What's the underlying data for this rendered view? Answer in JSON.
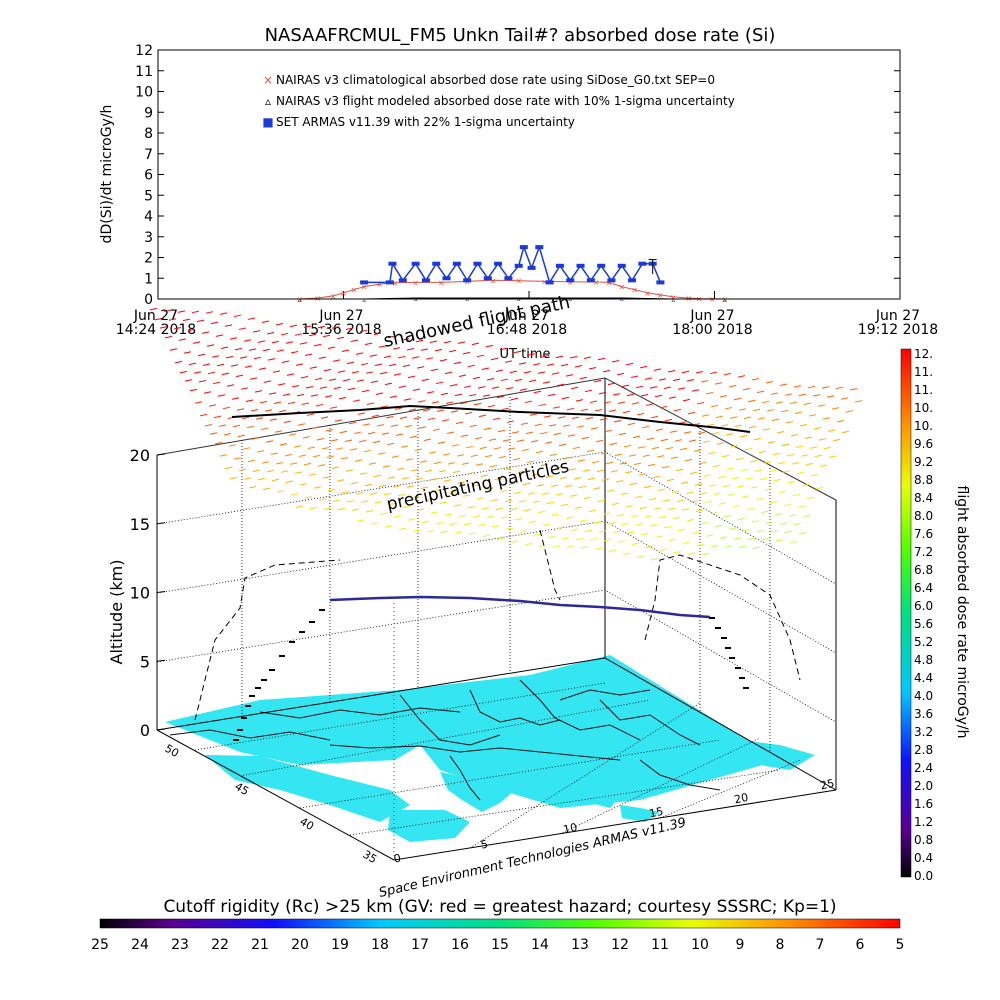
{
  "figure": {
    "title": "NASAAFRCMUL_FM5 Unkn Tail#? absorbed dose rate (Si)",
    "credit": "Space Environment Technologies ARMAS v11.39"
  },
  "chart_data": [
    {
      "type": "line",
      "title": "NASAAFRCMUL_FM5 Unkn Tail#? absorbed dose rate (Si)",
      "xlabel": "UT time",
      "ylabel": "dD(Si)/dt microGy/h",
      "ylim": [
        0,
        12
      ],
      "yticks": [
        "0",
        "1",
        "2",
        "3",
        "4",
        "5",
        "6",
        "7",
        "8",
        "9",
        "10",
        "11",
        "12"
      ],
      "xticks": [
        {
          "line1": "Jun 27",
          "line2": "14:24 2018"
        },
        {
          "line1": "Jun 27",
          "line2": "15:36 2018"
        },
        {
          "line1": "Jun 27",
          "line2": "16:48 2018"
        },
        {
          "line1": "Jun 27",
          "line2": "18:00 2018"
        },
        {
          "line1": "Jun 27",
          "line2": "19:12 2018"
        }
      ],
      "x_unit": "minutes after 14:24 UT",
      "legend_position": "top-left",
      "series": [
        {
          "name": "NAIRAS v3 climatological absorbed dose rate using SiDose_G0.txt SEP=0",
          "color": "#e05040",
          "marker": "x",
          "x": [
            55,
            62,
            68,
            72,
            76,
            80,
            86,
            92,
            100,
            110,
            120,
            130,
            140,
            150,
            160,
            170,
            175,
            180,
            185,
            190,
            195,
            200,
            206,
            210,
            215,
            220
          ],
          "y": [
            0.0,
            0.05,
            0.15,
            0.3,
            0.45,
            0.6,
            0.72,
            0.78,
            0.8,
            0.8,
            0.85,
            0.9,
            0.88,
            0.85,
            0.83,
            0.82,
            0.8,
            0.6,
            0.45,
            0.3,
            0.2,
            0.1,
            0.05,
            0.02,
            0.01,
            0.0
          ]
        },
        {
          "name": "NAIRAS v3 flight modeled absorbed dose rate with 10% 1-sigma uncertainty",
          "color": "#000000",
          "marker": "triangle",
          "x": [
            55,
            80,
            100,
            120,
            140,
            160,
            180,
            200,
            220
          ],
          "y": [
            0.0,
            0.0,
            0.05,
            0.05,
            0.05,
            0.05,
            0.05,
            0.0,
            0.0
          ]
        },
        {
          "name": "SET ARMAS v11.39 with 22% 1-sigma uncertainty",
          "color": "#1a3adb",
          "marker": "square",
          "x": [
            80,
            90,
            91,
            95,
            100,
            104,
            108,
            112,
            116,
            120,
            124,
            128,
            132,
            136,
            140,
            142,
            145,
            148,
            152,
            156,
            160,
            164,
            168,
            172,
            176,
            180,
            184,
            188,
            192,
            195
          ],
          "y": [
            0.8,
            0.8,
            1.7,
            0.9,
            1.7,
            0.9,
            1.7,
            1.0,
            1.7,
            0.9,
            1.7,
            1.0,
            1.7,
            1.0,
            1.6,
            2.5,
            1.5,
            2.5,
            0.8,
            1.6,
            0.9,
            1.6,
            0.9,
            1.6,
            0.9,
            1.6,
            0.9,
            1.7,
            1.7,
            0.8
          ]
        }
      ]
    },
    {
      "type": "scatter",
      "title": "",
      "zlabel": "Altitude (km)",
      "zticks": [
        "0",
        "5",
        "10",
        "15",
        "20"
      ],
      "zlim": [
        0,
        20
      ],
      "lat_ticks": [
        "35",
        "40",
        "45",
        "50"
      ],
      "lon_ticks": [
        "0",
        "5",
        "10",
        "15",
        "20",
        "25"
      ],
      "annotations": [
        "shadowed flight path",
        "precipitating particles"
      ],
      "flight_path_altitude_km": [
        0,
        2,
        4,
        6,
        8,
        9.5,
        9.8,
        9.9,
        9.8,
        9.6,
        9.4,
        9.2,
        8.6,
        6.5,
        4.5,
        3.5
      ],
      "colorbar": {
        "label": "flight absorbed dose rate microGy/h",
        "ticks": [
          "12.",
          "11.",
          "11.",
          "10.",
          "10.",
          "9.6",
          "9.2",
          "8.8",
          "8.4",
          "8.0",
          "7.6",
          "7.2",
          "6.8",
          "6.4",
          "6.0",
          "5.6",
          "5.2",
          "4.8",
          "4.4",
          "4.0",
          "3.6",
          "3.2",
          "2.8",
          "2.4",
          "2.0",
          "1.6",
          "1.2",
          "0.8",
          "0.4",
          "0.0"
        ]
      }
    }
  ],
  "bottom_colorbar": {
    "title": "Cutoff rigidity (Rc) >25 km (GV: red = greatest hazard; courtesy SSSRC; Kp=1)",
    "ticks": [
      "25",
      "24",
      "23",
      "22",
      "21",
      "20",
      "19",
      "18",
      "17",
      "16",
      "15",
      "14",
      "13",
      "12",
      "11",
      "10",
      "9",
      "8",
      "7",
      "6",
      "5"
    ]
  },
  "colors": {
    "land": "#33e6f2",
    "border": "#111111",
    "flight_path": "#2a2a9a"
  }
}
